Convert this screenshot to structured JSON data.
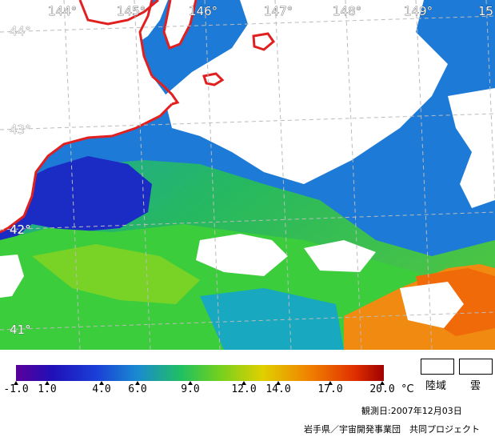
{
  "map": {
    "longitude_labels": [
      "144°",
      "145°",
      "146°",
      "147°",
      "148°",
      "149°",
      "15"
    ],
    "latitude_labels": [
      "44°",
      "43°",
      "42°",
      "41°"
    ]
  },
  "legend": {
    "ticks": [
      "-1.0",
      "1.0",
      "4.0",
      "6.0",
      "9.0",
      "12.0",
      "14.0",
      "17.0",
      "20.0"
    ],
    "unit": "°C",
    "land_label": "陸域",
    "cloud_label": "雲"
  },
  "observation_date": "観測日:2007年12月03日",
  "credit": "岩手県／宇宙開発事業団　共同プロジェクト",
  "colors": {
    "coastline": "#e02020",
    "grid": "#bbbbbb",
    "scale": [
      "#5a009a",
      "#1a10c8",
      "#1e5ad8",
      "#16a0c8",
      "#2ad23c",
      "#b4d400",
      "#f0b000",
      "#f06000",
      "#b40000"
    ]
  }
}
